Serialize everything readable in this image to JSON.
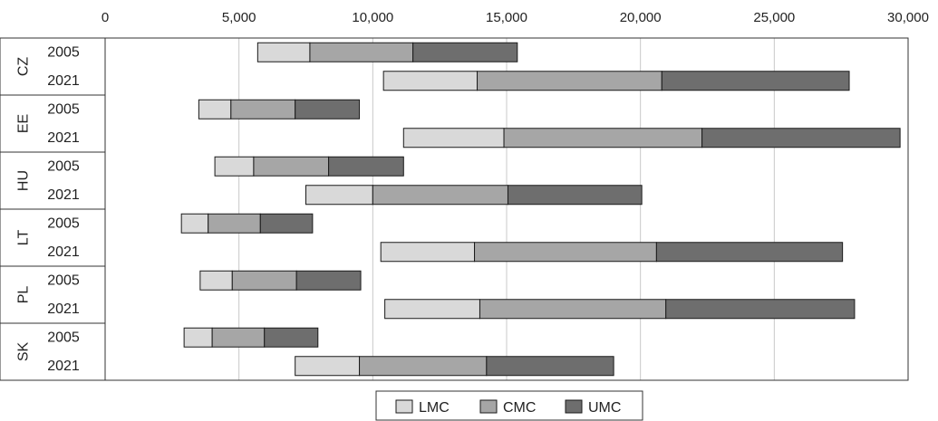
{
  "chart_data": {
    "type": "bar",
    "orientation": "horizontal",
    "stacked": true,
    "title": "",
    "xlabel": "",
    "ylabel": "",
    "xlim": [
      0,
      30000
    ],
    "x_ticks": [
      0,
      5000,
      10000,
      15000,
      20000,
      25000,
      30000
    ],
    "x_tick_labels": [
      "0",
      "5,000",
      "10,000",
      "15,000",
      "20,000",
      "25,000",
      "30,000"
    ],
    "x_axis_position": "top",
    "grid": "vertical",
    "legend_position": "bottom-center",
    "colors": {
      "LMC": "#d9d9d9",
      "CMC": "#a6a6a6",
      "UMC": "#6e6e6e"
    },
    "groups": [
      "CZ",
      "EE",
      "HU",
      "LT",
      "PL",
      "SK"
    ],
    "years": [
      "2005",
      "2021"
    ],
    "categories": [
      "CZ 2005",
      "CZ 2021",
      "EE 2005",
      "EE 2021",
      "HU 2005",
      "HU 2021",
      "LT 2005",
      "LT 2021",
      "PL 2005",
      "PL 2021",
      "SK 2005",
      "SK 2021"
    ],
    "bar_start": [
      5700,
      10400,
      3500,
      11150,
      4100,
      7500,
      2850,
      10300,
      3550,
      10450,
      2950,
      7100
    ],
    "series": [
      {
        "name": "LMC",
        "values": [
          1950,
          3500,
          1200,
          3750,
          1450,
          2500,
          1000,
          3500,
          1200,
          3550,
          1050,
          2400
        ]
      },
      {
        "name": "CMC",
        "values": [
          3850,
          6900,
          2400,
          7400,
          2800,
          5050,
          1950,
          6800,
          2400,
          6950,
          1950,
          4750
        ]
      },
      {
        "name": "UMC",
        "values": [
          3900,
          7000,
          2400,
          7400,
          2800,
          5000,
          1950,
          6950,
          2400,
          7050,
          2000,
          4750
        ]
      }
    ]
  }
}
